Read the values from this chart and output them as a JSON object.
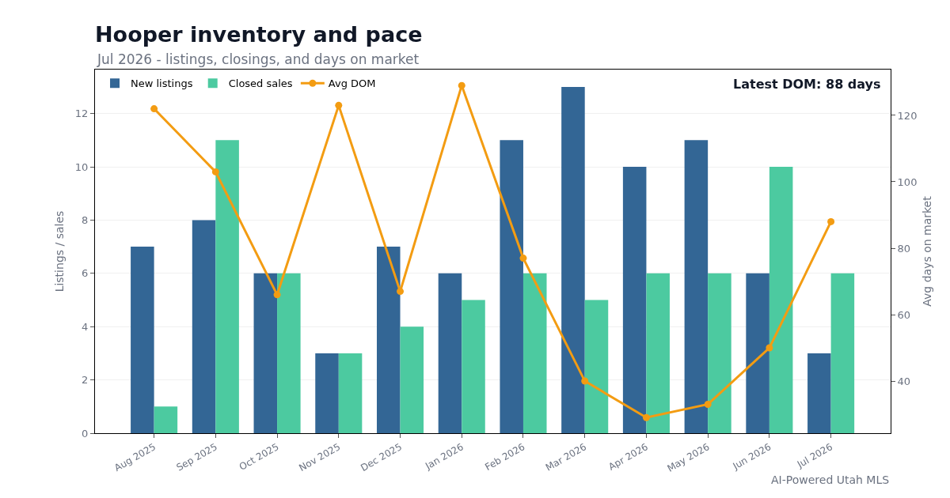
{
  "chart_data": {
    "type": "bar",
    "title": "Hooper inventory and pace",
    "subtitle": "Jul 2026 - listings, closings, and days on market",
    "ylabel": "Listings / sales",
    "y2label": "Avg days on market",
    "categories": [
      "Aug 2025",
      "Sep 2025",
      "Oct 2025",
      "Nov 2025",
      "Dec 2025",
      "Jan 2026",
      "Feb 2026",
      "Mar 2026",
      "Apr 2026",
      "May 2026",
      "Jun 2026",
      "Jul 2026"
    ],
    "series": [
      {
        "name": "New listings",
        "color": "#336695",
        "values": [
          7,
          8,
          6,
          3,
          7,
          6,
          11,
          13,
          10,
          11,
          6,
          3
        ]
      },
      {
        "name": "Closed sales",
        "color": "#4ccaa0",
        "values": [
          1,
          11,
          6,
          3,
          4,
          5,
          6,
          5,
          6,
          6,
          10,
          6
        ]
      },
      {
        "name": "Avg DOM",
        "type": "line",
        "axis": "y2",
        "color": "#f39c12",
        "marker": "circle",
        "line_style": "solid",
        "values": [
          122,
          103,
          66,
          123,
          67,
          129,
          77,
          40,
          29,
          33,
          50,
          88
        ]
      }
    ],
    "ylim": [
      0,
      13.65
    ],
    "yticks": [
      0,
      2,
      4,
      6,
      8,
      10,
      12
    ],
    "y2lim": [
      24.3,
      133.8
    ],
    "y2ticks": [
      40,
      60,
      80,
      100,
      120
    ],
    "grid": "y",
    "legend": "top left",
    "annotations": [
      "Latest DOM: 88 days",
      "AI-Powered Utah MLS"
    ]
  }
}
